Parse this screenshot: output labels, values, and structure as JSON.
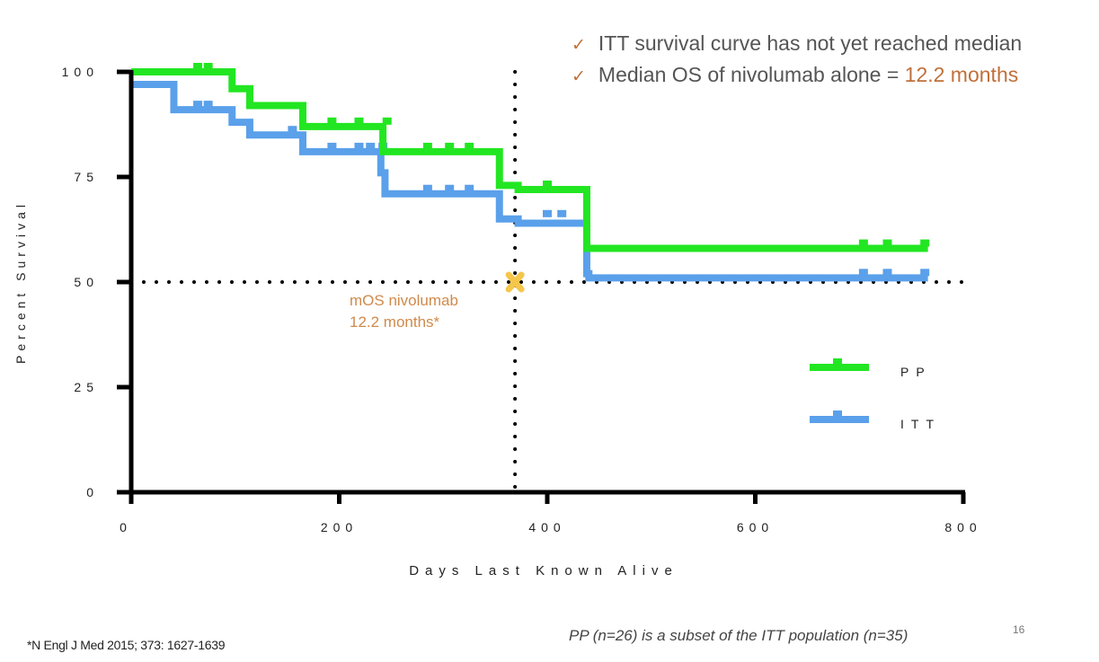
{
  "bullets": [
    {
      "icon": "check-icon",
      "text": "ITT survival curve has not yet reached median",
      "highlight": ""
    },
    {
      "icon": "check-icon",
      "text": "Median OS of nivolumab alone = ",
      "highlight": "12.2 months"
    }
  ],
  "footnote": "*N Engl J Med 2015; 373: 1627-1639",
  "subset_note": "PP (n=26) is a subset of the ITT population (n=35)",
  "page_number": "16",
  "colors": {
    "pp": "#22e622",
    "itt": "#5aa0ea",
    "accent": "#c0703a",
    "median_marker": "#f5c64a",
    "axis": "#000000"
  },
  "chart_data": {
    "type": "line",
    "subtype": "kaplan-meier-step",
    "title": "",
    "xlabel": "Days Last Known Alive",
    "ylabel": "Percent Survival",
    "xlim": [
      0,
      800
    ],
    "ylim": [
      0,
      100
    ],
    "xticks": [
      0,
      200,
      400,
      600,
      800
    ],
    "yticks": [
      0,
      25,
      50,
      75,
      100
    ],
    "grid": false,
    "legend_position": "right",
    "series": [
      {
        "name": "PP",
        "steps": [
          [
            0,
            100
          ],
          [
            97,
            96
          ],
          [
            114,
            92
          ],
          [
            165,
            87
          ],
          [
            242,
            81
          ],
          [
            354,
            73
          ],
          [
            372,
            72
          ],
          [
            438,
            58
          ],
          [
            766,
            58
          ]
        ],
        "censored": [
          [
            64,
            100
          ],
          [
            74,
            100
          ],
          [
            193,
            87
          ],
          [
            219,
            87
          ],
          [
            246,
            87
          ],
          [
            285,
            81
          ],
          [
            306,
            81
          ],
          [
            325,
            81
          ],
          [
            400,
            72
          ],
          [
            704,
            58
          ],
          [
            727,
            58
          ],
          [
            763,
            58
          ]
        ]
      },
      {
        "name": "ITT",
        "steps": [
          [
            0,
            97
          ],
          [
            41,
            91
          ],
          [
            97,
            88
          ],
          [
            114,
            85
          ],
          [
            165,
            81
          ],
          [
            240,
            76
          ],
          [
            244,
            71
          ],
          [
            354,
            65
          ],
          [
            372,
            64
          ],
          [
            438,
            52
          ],
          [
            440,
            51
          ],
          [
            766,
            51
          ]
        ],
        "censored": [
          [
            64,
            91
          ],
          [
            74,
            91
          ],
          [
            155,
            85
          ],
          [
            193,
            81
          ],
          [
            219,
            81
          ],
          [
            230,
            81
          ],
          [
            242,
            81
          ],
          [
            285,
            71
          ],
          [
            306,
            71
          ],
          [
            325,
            71
          ],
          [
            400,
            65
          ],
          [
            414,
            65
          ],
          [
            704,
            51
          ],
          [
            727,
            51
          ],
          [
            763,
            51
          ]
        ]
      }
    ],
    "reference_lines": [
      {
        "orientation": "horizontal",
        "value": 50,
        "style": "dotted"
      },
      {
        "orientation": "vertical",
        "value": 369,
        "style": "dotted"
      }
    ],
    "annotations": [
      {
        "text_lines": [
          "mOS nivolumab",
          "12.2 months*"
        ],
        "x": 369,
        "y": 50,
        "marker": "x"
      }
    ]
  }
}
